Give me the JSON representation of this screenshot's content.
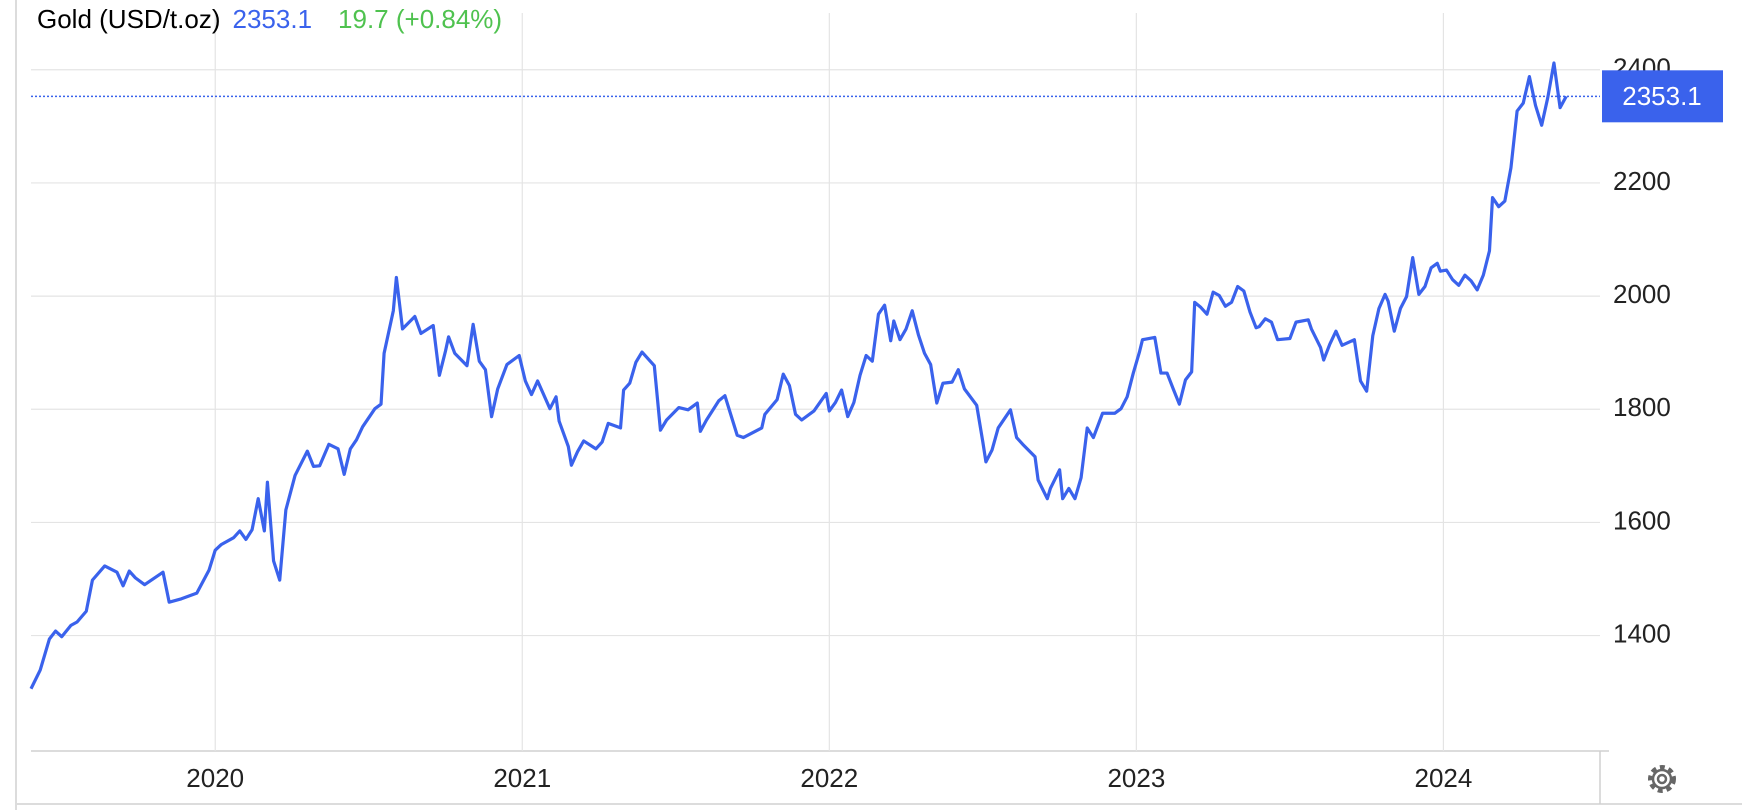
{
  "chart_data": {
    "type": "line",
    "title": "Gold (USD/t.oz)",
    "last_value": 2353.1,
    "change": "19.7 (+0.84%)",
    "color": "#3a62ec",
    "grid": true,
    "xlim": [
      2019.4,
      2024.51
    ],
    "ylim": [
      1196,
      2465
    ],
    "xticks": [
      2020,
      2021,
      2022,
      2023,
      2024
    ],
    "yticks": [
      1400,
      1600,
      1800,
      2000,
      2200,
      2400
    ],
    "x": [
      2019.4,
      2019.43,
      2019.46,
      2019.48,
      2019.5,
      2019.53,
      2019.55,
      2019.58,
      2019.6,
      2019.64,
      2019.68,
      2019.7,
      2019.72,
      2019.74,
      2019.77,
      2019.83,
      2019.85,
      2019.89,
      2019.94,
      2019.98,
      2020.0,
      2020.02,
      2020.06,
      2020.08,
      2020.1,
      2020.12,
      2020.14,
      2020.16,
      2020.17,
      2020.19,
      2020.21,
      2020.23,
      2020.26,
      2020.3,
      2020.32,
      2020.34,
      2020.37,
      2020.4,
      2020.42,
      2020.44,
      2020.46,
      2020.48,
      2020.52,
      2020.54,
      2020.55,
      2020.58,
      2020.59,
      2020.61,
      2020.65,
      2020.67,
      2020.71,
      2020.73,
      2020.75,
      2020.76,
      2020.78,
      2020.82,
      2020.84,
      2020.86,
      2020.88,
      2020.9,
      2020.92,
      2020.95,
      2020.99,
      2021.01,
      2021.03,
      2021.05,
      2021.09,
      2021.11,
      2021.12,
      2021.15,
      2021.16,
      2021.18,
      2021.2,
      2021.24,
      2021.26,
      2021.28,
      2021.32,
      2021.33,
      2021.35,
      2021.37,
      2021.39,
      2021.43,
      2021.45,
      2021.47,
      2021.51,
      2021.54,
      2021.57,
      2021.58,
      2021.6,
      2021.64,
      2021.66,
      2021.68,
      2021.7,
      2021.72,
      2021.78,
      2021.79,
      2021.83,
      2021.85,
      2021.87,
      2021.89,
      2021.91,
      2021.95,
      2021.99,
      2022.0,
      2022.02,
      2022.04,
      2022.06,
      2022.08,
      2022.1,
      2022.12,
      2022.14,
      2022.16,
      2022.18,
      2022.2,
      2022.21,
      2022.23,
      2022.25,
      2022.27,
      2022.29,
      2022.31,
      2022.33,
      2022.35,
      2022.37,
      2022.4,
      2022.42,
      2022.44,
      2022.48,
      2022.5,
      2022.51,
      2022.53,
      2022.55,
      2022.59,
      2022.61,
      2022.63,
      2022.67,
      2022.68,
      2022.71,
      2022.72,
      2022.75,
      2022.76,
      2022.78,
      2022.8,
      2022.82,
      2022.84,
      2022.86,
      2022.89,
      2022.93,
      2022.95,
      2022.97,
      2022.99,
      2023.01,
      2023.02,
      2023.06,
      2023.08,
      2023.1,
      2023.12,
      2023.14,
      2023.16,
      2023.18,
      2023.19,
      2023.21,
      2023.23,
      2023.25,
      2023.27,
      2023.29,
      2023.31,
      2023.33,
      2023.35,
      2023.37,
      2023.39,
      2023.4,
      2023.42,
      2023.44,
      2023.46,
      2023.5,
      2023.52,
      2023.56,
      2023.57,
      2023.6,
      2023.61,
      2023.63,
      2023.65,
      2023.67,
      2023.71,
      2023.73,
      2023.75,
      2023.77,
      2023.79,
      2023.81,
      2023.82,
      2023.84,
      2023.86,
      2023.88,
      2023.9,
      2023.92,
      2023.94,
      2023.96,
      2023.98,
      2023.99,
      2024.01,
      2024.03,
      2024.05,
      2024.07,
      2024.09,
      2024.11,
      2024.13,
      2024.15,
      2024.16,
      2024.18,
      2024.2,
      2024.22,
      2024.24,
      2024.26,
      2024.28,
      2024.3,
      2024.32,
      2024.34,
      2024.36,
      2024.38,
      2024.4
    ],
    "values": [
      1306,
      1339,
      1394,
      1408,
      1398,
      1418,
      1424,
      1443,
      1498,
      1523,
      1512,
      1488,
      1514,
      1502,
      1490,
      1512,
      1459,
      1465,
      1475,
      1516,
      1551,
      1561,
      1573,
      1585,
      1570,
      1587,
      1642,
      1585,
      1671,
      1532,
      1498,
      1622,
      1683,
      1726,
      1699,
      1700,
      1738,
      1730,
      1685,
      1730,
      1746,
      1769,
      1801,
      1809,
      1899,
      1974,
      2033,
      1942,
      1964,
      1934,
      1948,
      1860,
      1903,
      1928,
      1899,
      1877,
      1950,
      1885,
      1870,
      1787,
      1836,
      1879,
      1895,
      1850,
      1826,
      1850,
      1801,
      1822,
      1779,
      1734,
      1701,
      1725,
      1744,
      1730,
      1742,
      1775,
      1767,
      1834,
      1846,
      1883,
      1901,
      1877,
      1763,
      1781,
      1803,
      1799,
      1811,
      1761,
      1781,
      1815,
      1824,
      1789,
      1754,
      1750,
      1767,
      1791,
      1817,
      1862,
      1842,
      1791,
      1781,
      1797,
      1828,
      1797,
      1812,
      1834,
      1787,
      1812,
      1860,
      1895,
      1885,
      1968,
      1984,
      1921,
      1956,
      1923,
      1942,
      1974,
      1932,
      1899,
      1879,
      1811,
      1846,
      1848,
      1870,
      1836,
      1807,
      1742,
      1707,
      1728,
      1767,
      1799,
      1750,
      1738,
      1716,
      1675,
      1642,
      1660,
      1693,
      1642,
      1660,
      1642,
      1679,
      1767,
      1750,
      1793,
      1793,
      1801,
      1822,
      1864,
      1901,
      1923,
      1927,
      1864,
      1864,
      1836,
      1809,
      1852,
      1866,
      1989,
      1980,
      1968,
      2007,
      2001,
      1982,
      1989,
      2017,
      2009,
      1972,
      1944,
      1946,
      1960,
      1954,
      1923,
      1925,
      1954,
      1958,
      1942,
      1909,
      1887,
      1915,
      1938,
      1913,
      1923,
      1850,
      1832,
      1930,
      1978,
      2003,
      1991,
      1938,
      1978,
      1999,
      2068,
      2003,
      2017,
      2050,
      2058,
      2044,
      2046,
      2029,
      2019,
      2037,
      2027,
      2011,
      2037,
      2080,
      2174,
      2158,
      2168,
      2227,
      2327,
      2341,
      2388,
      2337,
      2302,
      2351,
      2412,
      2333,
      2353
    ]
  }
}
